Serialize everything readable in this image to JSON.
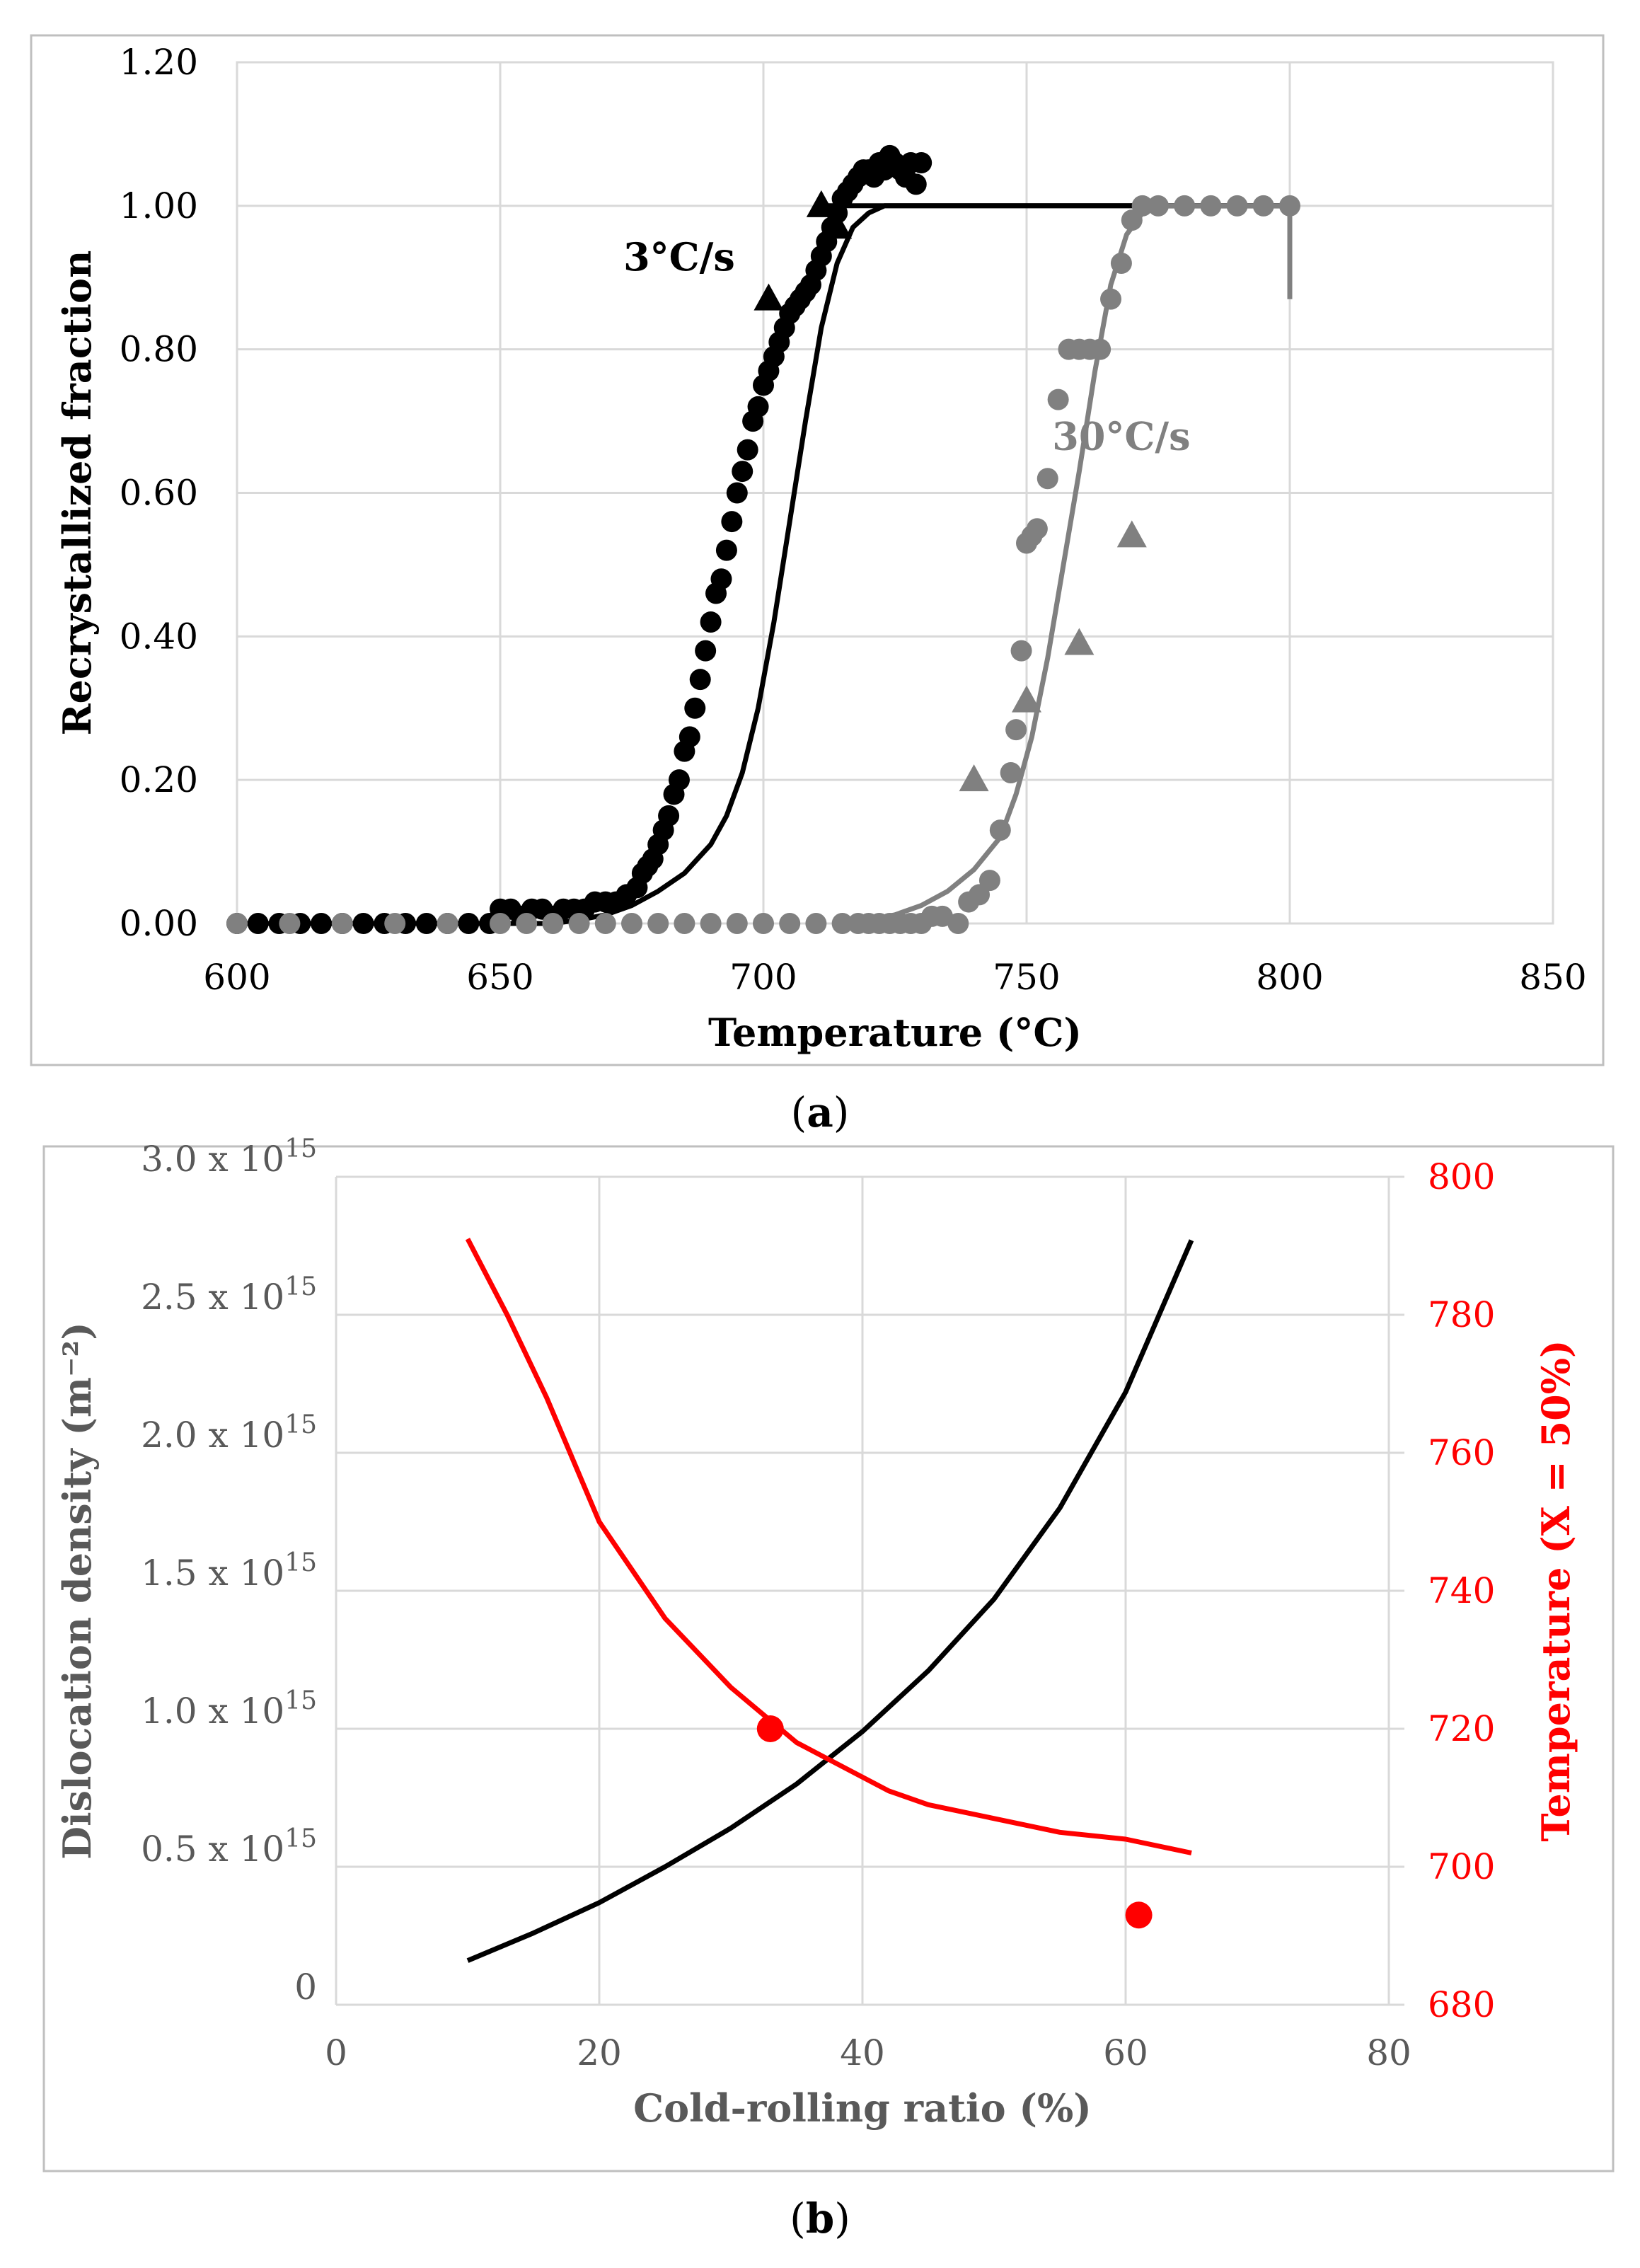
{
  "panels": {
    "a": {
      "caption_open": "(",
      "caption_letter": "a",
      "caption_close": ")"
    },
    "b": {
      "caption_open": "(",
      "caption_letter": "b",
      "caption_close": ")"
    }
  },
  "colors": {
    "black_series": "#000000",
    "gray_series": "#808080",
    "red_series": "#ff0000",
    "grid": "#d9d9d9",
    "frame": "#bfbfbf"
  },
  "chart_data": [
    {
      "id": "a",
      "type": "scatter",
      "title": "",
      "xlabel": "Temperature (°C)",
      "ylabel": "Recrystallized fraction",
      "xlim": [
        600,
        850
      ],
      "ylim": [
        0,
        1.2
      ],
      "x_ticks": [
        "600",
        "650",
        "700",
        "750",
        "800",
        "850"
      ],
      "y_ticks": [
        "0.00",
        "0.20",
        "0.40",
        "0.60",
        "0.80",
        "1.00",
        "1.20"
      ],
      "grid": true,
      "annotations": [
        {
          "id": "label-3cs",
          "text": "3°C/s",
          "x": 684,
          "y": 0.91,
          "color": "#000000"
        },
        {
          "id": "label-30cs",
          "text": "30°C/s",
          "x": 768,
          "y": 0.66,
          "color": "#808080"
        }
      ],
      "series": [
        {
          "name": "3°C/s measured",
          "kind": "dots",
          "color": "#000000",
          "x": [
            600,
            604,
            608,
            612,
            616,
            620,
            624,
            628,
            632,
            636,
            640,
            644,
            648,
            650,
            652,
            654,
            656,
            658,
            660,
            662,
            664,
            666,
            668,
            670,
            672,
            674,
            676,
            677,
            678,
            679,
            680,
            681,
            682,
            683,
            684,
            685,
            686,
            687,
            688,
            689,
            690,
            691,
            692,
            693,
            694,
            695,
            696,
            697,
            698,
            699,
            700,
            701,
            702,
            703,
            704,
            705,
            706,
            707,
            708,
            709,
            710,
            711,
            712,
            713,
            714,
            715,
            716,
            717,
            718,
            719,
            720,
            721,
            722,
            723,
            724,
            725,
            726,
            727,
            728,
            729,
            730
          ],
          "y": [
            0,
            0,
            0,
            0,
            0,
            0,
            0,
            0,
            0,
            0,
            0,
            0,
            0,
            0.02,
            0.02,
            0.01,
            0.02,
            0.02,
            0.01,
            0.02,
            0.02,
            0.02,
            0.03,
            0.03,
            0.03,
            0.04,
            0.05,
            0.07,
            0.08,
            0.09,
            0.11,
            0.13,
            0.15,
            0.18,
            0.2,
            0.24,
            0.26,
            0.3,
            0.34,
            0.38,
            0.42,
            0.46,
            0.48,
            0.52,
            0.56,
            0.6,
            0.63,
            0.66,
            0.7,
            0.72,
            0.75,
            0.77,
            0.79,
            0.81,
            0.83,
            0.85,
            0.86,
            0.87,
            0.88,
            0.89,
            0.91,
            0.93,
            0.95,
            0.97,
            0.99,
            1.01,
            1.02,
            1.03,
            1.04,
            1.05,
            1.05,
            1.04,
            1.06,
            1.05,
            1.07,
            1.06,
            1.05,
            1.04,
            1.06,
            1.03,
            1.06
          ]
        },
        {
          "name": "3°C/s model",
          "kind": "line",
          "color": "#000000",
          "x": [
            600,
            660,
            665,
            670,
            675,
            680,
            685,
            690,
            693,
            696,
            699,
            702,
            705,
            708,
            711,
            714,
            717,
            720,
            723,
            726,
            730,
            760,
            800
          ],
          "y": [
            0,
            0,
            0.005,
            0.012,
            0.025,
            0.045,
            0.07,
            0.11,
            0.15,
            0.21,
            0.3,
            0.42,
            0.56,
            0.7,
            0.83,
            0.92,
            0.97,
            0.99,
            1.0,
            1.0,
            1.0,
            1.0,
            1.0
          ]
        },
        {
          "name": "3°C/s plateau",
          "kind": "line",
          "color": "#000000",
          "x": [
            710,
            800
          ],
          "y": [
            1.0,
            1.0
          ]
        },
        {
          "name": "3°C/s triangles",
          "kind": "triangles",
          "color": "#000000",
          "x": [
            701,
            711,
            714
          ],
          "y": [
            0.87,
            1.0,
            0.97
          ]
        },
        {
          "name": "30°C/s measured",
          "kind": "dots",
          "color": "#808080",
          "x": [
            600,
            610,
            620,
            630,
            640,
            650,
            655,
            660,
            665,
            670,
            675,
            680,
            685,
            690,
            695,
            700,
            705,
            710,
            715,
            718,
            720,
            722,
            724,
            726,
            728,
            730,
            732,
            734,
            737,
            739,
            741,
            743,
            745,
            747,
            748,
            749,
            750,
            751,
            752,
            754,
            756,
            758,
            760,
            762,
            764,
            766,
            768,
            770,
            772,
            775,
            780,
            785,
            790,
            795,
            800
          ],
          "y": [
            0,
            0,
            0,
            0,
            0,
            0,
            0,
            0,
            0,
            0,
            0,
            0,
            0,
            0,
            0,
            0,
            0,
            0,
            0,
            0,
            0,
            0,
            0,
            0,
            0,
            0,
            0.01,
            0.01,
            0.0,
            0.03,
            0.04,
            0.06,
            0.13,
            0.21,
            0.27,
            0.38,
            0.53,
            0.54,
            0.55,
            0.62,
            0.73,
            0.8,
            0.8,
            0.8,
            0.8,
            0.87,
            0.92,
            0.98,
            1.0,
            1.0,
            1.0,
            1.0,
            1.0,
            1.0,
            1.0
          ]
        },
        {
          "name": "30°C/s model",
          "kind": "line",
          "color": "#808080",
          "x": [
            715,
            720,
            725,
            730,
            735,
            740,
            745,
            748,
            751,
            754,
            757,
            760,
            763,
            766,
            769,
            772,
            776,
            780,
            790,
            800
          ],
          "y": [
            0,
            0.005,
            0.012,
            0.025,
            0.045,
            0.075,
            0.12,
            0.18,
            0.26,
            0.37,
            0.5,
            0.63,
            0.77,
            0.89,
            0.96,
            0.99,
            1.0,
            1.0,
            1.0,
            1.0
          ]
        },
        {
          "name": "30°C/s end drop",
          "kind": "line",
          "color": "#808080",
          "x": [
            800,
            800
          ],
          "y": [
            1.0,
            0.87
          ]
        },
        {
          "name": "30°C/s triangles",
          "kind": "triangles",
          "color": "#808080",
          "x": [
            740,
            750,
            760,
            770
          ],
          "y": [
            0.2,
            0.31,
            0.39,
            0.54
          ]
        }
      ]
    },
    {
      "id": "b",
      "type": "line",
      "title": "",
      "xlabel": "Cold-rolling ratio (%)",
      "ylabel_left": "Dislocation density (m⁻²)",
      "ylabel_right": "Temperature (X = 50%)",
      "xlim": [
        0,
        80
      ],
      "ylim_left": [
        0,
        3.0
      ],
      "ylim_right": [
        680,
        800
      ],
      "x_ticks": [
        "0",
        "20",
        "40",
        "60",
        "80"
      ],
      "y_left_ticks": [
        {
          "value": 0,
          "mantissa": "0",
          "times": "",
          "base": "",
          "exp": ""
        },
        {
          "value": 0.5,
          "mantissa": "0.5",
          "times": " x ",
          "base": "10",
          "exp": "15"
        },
        {
          "value": 1.0,
          "mantissa": "1.0",
          "times": " x ",
          "base": "10",
          "exp": "15"
        },
        {
          "value": 1.5,
          "mantissa": "1.5",
          "times": " x ",
          "base": "10",
          "exp": "15"
        },
        {
          "value": 2.0,
          "mantissa": "2.0",
          "times": " x ",
          "base": "10",
          "exp": "15"
        },
        {
          "value": 2.5,
          "mantissa": "2.5",
          "times": " x ",
          "base": "10",
          "exp": "15"
        },
        {
          "value": 3.0,
          "mantissa": "3.0",
          "times": " x ",
          "base": "10",
          "exp": "15"
        }
      ],
      "y_right_ticks": [
        "680",
        "700",
        "720",
        "740",
        "760",
        "780",
        "800"
      ],
      "grid": true,
      "series": [
        {
          "name": "Dislocation density",
          "axis": "left",
          "kind": "line",
          "color": "#000000",
          "x": [
            10,
            15,
            20,
            25,
            30,
            35,
            40,
            45,
            50,
            55,
            60,
            65
          ],
          "y": [
            0.16,
            0.26,
            0.37,
            0.5,
            0.64,
            0.8,
            0.99,
            1.21,
            1.47,
            1.8,
            2.22,
            2.77
          ]
        },
        {
          "name": "Temperature (X = 50%) model",
          "axis": "right",
          "kind": "line",
          "color": "#ff0000",
          "x": [
            10,
            13,
            16,
            20,
            25,
            30,
            35,
            38,
            42,
            45,
            50,
            55,
            60,
            65
          ],
          "y": [
            791,
            780,
            768,
            750,
            736,
            726,
            718,
            715,
            711,
            709,
            707,
            705,
            704,
            702
          ]
        },
        {
          "name": "Temperature (X = 50%) measured",
          "axis": "right",
          "kind": "dots",
          "color": "#ff0000",
          "x": [
            33,
            61
          ],
          "y": [
            720,
            693
          ]
        }
      ]
    }
  ]
}
